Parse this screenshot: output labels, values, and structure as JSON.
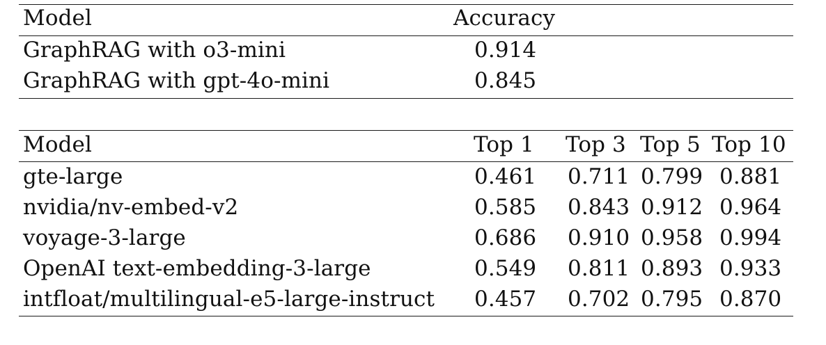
{
  "table1": {
    "headers": [
      "Model",
      "Accuracy"
    ],
    "rows": [
      [
        "GraphRAG with o3-mini",
        "0.914"
      ],
      [
        "GraphRAG with gpt-4o-mini",
        "0.845"
      ]
    ]
  },
  "table2": {
    "headers": [
      "Model",
      "Top 1",
      "Top 3",
      "Top 5",
      "Top 10"
    ],
    "rows": [
      [
        "gte-large",
        "0.461",
        "0.711",
        "0.799",
        "0.881"
      ],
      [
        "nvidia/nv-embed-v2",
        "0.585",
        "0.843",
        "0.912",
        "0.964"
      ],
      [
        "voyage-3-large",
        "0.686",
        "0.910",
        "0.958",
        "0.994"
      ],
      [
        "OpenAI text-embedding-3-large",
        "0.549",
        "0.811",
        "0.893",
        "0.933"
      ],
      [
        "intfloat/multilingual-e5-large-instruct",
        "0.457",
        "0.702",
        "0.795",
        "0.870"
      ]
    ]
  }
}
